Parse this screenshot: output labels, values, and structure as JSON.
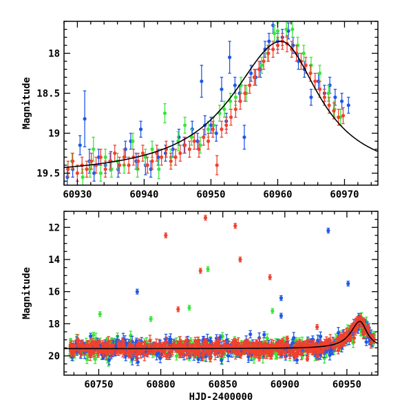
{
  "colors": {
    "blue": "#1f57e6",
    "green": "#39e639",
    "red": "#f0402e",
    "model": "#000000",
    "frame": "#000000"
  },
  "chart_data": [
    {
      "type": "scatter",
      "panel": "top",
      "xlabel": "",
      "ylabel": "Magnitude",
      "xlim": [
        60928,
        60975
      ],
      "ylim": [
        19.65,
        17.6
      ],
      "y_inverted": true,
      "xticks": [
        60930,
        60940,
        60950,
        60960,
        60970
      ],
      "xtick_labels": [
        "60930",
        "60940",
        "60950",
        "60960",
        "60970"
      ],
      "yticks": [
        18,
        18.5,
        19,
        19.5
      ],
      "ytick_labels": [
        "18",
        "18.5",
        "19",
        "19.5"
      ],
      "model_curve": {
        "name": "fit",
        "peak_x": 60960.5,
        "peak_mag": 17.85,
        "baseline_mag": 19.55,
        "rise_timescale": 9.0,
        "decay_timescale": 7.0
      },
      "series": [
        {
          "name": "blue",
          "color": "#1f57e6",
          "points": [
            [
              60928.5,
              19.55,
              0.1
            ],
            [
              60929.3,
              19.45,
              0.1
            ],
            [
              60930.4,
              19.15,
              0.12
            ],
            [
              60931.1,
              18.82,
              0.35
            ],
            [
              60931.8,
              19.35,
              0.15
            ],
            [
              60932.5,
              19.5,
              0.1
            ],
            [
              60933.2,
              19.3,
              0.1
            ],
            [
              60934.2,
              19.4,
              0.1
            ],
            [
              60935.0,
              19.35,
              0.12
            ],
            [
              60936.1,
              19.45,
              0.1
            ],
            [
              60937.2,
              19.2,
              0.1
            ],
            [
              60938.0,
              19.1,
              0.1
            ],
            [
              60938.8,
              19.35,
              0.1
            ],
            [
              60939.5,
              18.95,
              0.1
            ],
            [
              60940.2,
              19.4,
              0.12
            ],
            [
              60941.0,
              19.45,
              0.1
            ],
            [
              60942.1,
              19.3,
              0.1
            ],
            [
              60943.2,
              19.25,
              0.1
            ],
            [
              60944.3,
              19.2,
              0.1
            ],
            [
              60945.2,
              19.05,
              0.1
            ],
            [
              60946.0,
              19.15,
              0.1
            ],
            [
              60947.2,
              18.95,
              0.1
            ],
            [
              60948.0,
              19.1,
              0.1
            ],
            [
              60948.6,
              18.35,
              0.2
            ],
            [
              60949.1,
              18.9,
              0.12
            ],
            [
              60950.0,
              18.9,
              0.1
            ],
            [
              60950.8,
              19.0,
              0.1
            ],
            [
              60951.6,
              18.45,
              0.15
            ],
            [
              60952.3,
              18.85,
              0.1
            ],
            [
              60952.8,
              18.05,
              0.2
            ],
            [
              60953.6,
              18.4,
              0.1
            ],
            [
              60954.3,
              18.5,
              0.1
            ],
            [
              60955.0,
              19.05,
              0.15
            ],
            [
              60956.0,
              18.25,
              0.1
            ],
            [
              60956.7,
              18.3,
              0.1
            ],
            [
              60957.4,
              18.2,
              0.1
            ],
            [
              60958.1,
              17.95,
              0.1
            ],
            [
              60958.7,
              17.85,
              0.1
            ],
            [
              60959.3,
              17.65,
              0.1
            ],
            [
              60960.0,
              17.85,
              0.1
            ],
            [
              60960.7,
              17.8,
              0.1
            ],
            [
              60961.6,
              17.72,
              0.1
            ],
            [
              60962.3,
              17.9,
              0.1
            ],
            [
              60963.1,
              18.1,
              0.1
            ],
            [
              60964.0,
              18.2,
              0.1
            ],
            [
              60965.0,
              18.55,
              0.1
            ],
            [
              60966.1,
              18.35,
              0.1
            ],
            [
              60967.0,
              18.5,
              0.1
            ],
            [
              60967.8,
              18.4,
              0.1
            ],
            [
              60968.6,
              18.55,
              0.1
            ],
            [
              60969.6,
              18.6,
              0.1
            ],
            [
              60970.6,
              18.65,
              0.1
            ]
          ]
        },
        {
          "name": "green",
          "color": "#39e639",
          "points": [
            [
              60929.2,
              19.35,
              0.1
            ],
            [
              60930.8,
              19.55,
              0.1
            ],
            [
              60931.9,
              19.45,
              0.1
            ],
            [
              60932.4,
              19.2,
              0.15
            ],
            [
              60933.5,
              19.5,
              0.1
            ],
            [
              60934.2,
              19.3,
              0.1
            ],
            [
              60935.1,
              19.45,
              0.1
            ],
            [
              60936.0,
              19.35,
              0.1
            ],
            [
              60937.0,
              19.4,
              0.1
            ],
            [
              60938.3,
              19.1,
              0.1
            ],
            [
              60939.0,
              19.45,
              0.1
            ],
            [
              60940.2,
              19.3,
              0.1
            ],
            [
              60941.2,
              19.2,
              0.1
            ],
            [
              60942.2,
              19.45,
              0.12
            ],
            [
              60943.1,
              18.75,
              0.12
            ],
            [
              60944.0,
              19.3,
              0.1
            ],
            [
              60945.1,
              19.1,
              0.12
            ],
            [
              60946.1,
              18.9,
              0.1
            ],
            [
              60947.1,
              19.05,
              0.1
            ],
            [
              60948.4,
              19.15,
              0.1
            ],
            [
              60949.6,
              18.95,
              0.1
            ],
            [
              60950.4,
              18.9,
              0.1
            ],
            [
              60951.3,
              18.75,
              0.1
            ],
            [
              60952.0,
              18.7,
              0.1
            ],
            [
              60952.9,
              18.6,
              0.1
            ],
            [
              60953.7,
              18.55,
              0.1
            ],
            [
              60954.5,
              18.4,
              0.1
            ],
            [
              60955.3,
              18.5,
              0.1
            ],
            [
              60956.5,
              18.3,
              0.1
            ],
            [
              60957.6,
              18.15,
              0.1
            ],
            [
              60958.5,
              18.0,
              0.1
            ],
            [
              60959.5,
              17.75,
              0.1
            ],
            [
              60960.0,
              17.72,
              0.1
            ],
            [
              60961.3,
              17.7,
              0.1
            ],
            [
              60962.2,
              17.7,
              0.1
            ],
            [
              60963.0,
              17.9,
              0.1
            ],
            [
              60963.9,
              18.0,
              0.1
            ],
            [
              60965.0,
              18.15,
              0.1
            ],
            [
              60966.3,
              18.25,
              0.1
            ],
            [
              60967.6,
              18.5,
              0.1
            ],
            [
              60968.5,
              18.7,
              0.1
            ],
            [
              60969.4,
              18.8,
              0.1
            ]
          ]
        },
        {
          "name": "red",
          "color": "#f0402e",
          "points": [
            [
              60928.6,
              19.45,
              0.1
            ],
            [
              60929.3,
              19.35,
              0.1
            ],
            [
              60930.0,
              19.5,
              0.1
            ],
            [
              60930.7,
              19.4,
              0.1
            ],
            [
              60931.4,
              19.45,
              0.1
            ],
            [
              60932.1,
              19.35,
              0.1
            ],
            [
              60932.8,
              19.4,
              0.1
            ],
            [
              60933.5,
              19.3,
              0.1
            ],
            [
              60934.2,
              19.45,
              0.1
            ],
            [
              60934.9,
              19.35,
              0.1
            ],
            [
              60935.6,
              19.25,
              0.1
            ],
            [
              60936.3,
              19.4,
              0.1
            ],
            [
              60937.0,
              19.3,
              0.1
            ],
            [
              60937.7,
              19.4,
              0.1
            ],
            [
              60938.4,
              19.3,
              0.1
            ],
            [
              60939.1,
              19.35,
              0.1
            ],
            [
              60939.8,
              19.25,
              0.1
            ],
            [
              60940.5,
              19.4,
              0.1
            ],
            [
              60941.2,
              19.35,
              0.1
            ],
            [
              60941.9,
              19.25,
              0.1
            ],
            [
              60942.6,
              19.3,
              0.1
            ],
            [
              60943.3,
              19.2,
              0.1
            ],
            [
              60944.0,
              19.35,
              0.1
            ],
            [
              60944.7,
              19.3,
              0.1
            ],
            [
              60945.4,
              19.25,
              0.1
            ],
            [
              60946.1,
              19.15,
              0.1
            ],
            [
              60946.8,
              19.2,
              0.1
            ],
            [
              60947.5,
              19.1,
              0.1
            ],
            [
              60948.2,
              19.2,
              0.1
            ],
            [
              60948.9,
              19.05,
              0.1
            ],
            [
              60949.6,
              19.1,
              0.1
            ],
            [
              60950.3,
              18.95,
              0.1
            ],
            [
              60950.9,
              19.4,
              0.12
            ],
            [
              60951.6,
              18.95,
              0.1
            ],
            [
              60952.3,
              18.9,
              0.1
            ],
            [
              60953.0,
              18.8,
              0.1
            ],
            [
              60953.7,
              18.7,
              0.1
            ],
            [
              60954.4,
              18.6,
              0.1
            ],
            [
              60955.1,
              18.5,
              0.1
            ],
            [
              60955.8,
              18.4,
              0.1
            ],
            [
              60956.5,
              18.3,
              0.1
            ],
            [
              60957.2,
              18.2,
              0.1
            ],
            [
              60957.9,
              18.1,
              0.1
            ],
            [
              60958.6,
              18.0,
              0.1
            ],
            [
              60959.3,
              17.95,
              0.1
            ],
            [
              60960.0,
              17.9,
              0.1
            ],
            [
              60960.7,
              17.85,
              0.1
            ],
            [
              60961.4,
              17.88,
              0.1
            ],
            [
              60962.1,
              17.95,
              0.1
            ],
            [
              60962.8,
              18.0,
              0.1
            ],
            [
              60963.5,
              18.1,
              0.1
            ],
            [
              60964.2,
              18.15,
              0.1
            ],
            [
              60964.9,
              18.25,
              0.1
            ],
            [
              60965.6,
              18.35,
              0.1
            ],
            [
              60966.3,
              18.45,
              0.1
            ],
            [
              60967.0,
              18.55,
              0.1
            ],
            [
              60967.7,
              18.65,
              0.1
            ],
            [
              60968.4,
              18.72,
              0.1
            ],
            [
              60969.1,
              18.8,
              0.1
            ],
            [
              60969.8,
              18.78,
              0.1
            ]
          ]
        }
      ]
    },
    {
      "type": "scatter",
      "panel": "bottom",
      "xlabel": "HJD-2400000",
      "ylabel": "Magnitude",
      "xlim": [
        60722,
        60975
      ],
      "ylim": [
        21.2,
        11
      ],
      "y_inverted": true,
      "xticks": [
        60750,
        60800,
        60850,
        60900,
        60950
      ],
      "xtick_labels": [
        "60750",
        "60800",
        "60850",
        "60900",
        "60950"
      ],
      "yticks": [
        12,
        14,
        16,
        18,
        20
      ],
      "ytick_labels": [
        "12",
        "14",
        "16",
        "18",
        "20"
      ],
      "model_curve": {
        "name": "fit",
        "peak_x": 60960.5,
        "peak_mag": 17.85,
        "baseline_mag": 19.55,
        "rise_timescale": 9.0,
        "decay_timescale": 7.0
      },
      "baseline_scatter": {
        "x_start": 60727,
        "x_end": 60958,
        "median_mag": 19.5,
        "rms": 0.35
      },
      "outliers": [
        {
          "series": "red",
          "x": 60804,
          "y": 12.5
        },
        {
          "series": "red",
          "x": 60836,
          "y": 11.4
        },
        {
          "series": "red",
          "x": 60860,
          "y": 11.9
        },
        {
          "series": "red",
          "x": 60832,
          "y": 14.7
        },
        {
          "series": "red",
          "x": 60864,
          "y": 14.0
        },
        {
          "series": "red",
          "x": 60888,
          "y": 15.1
        },
        {
          "series": "red",
          "x": 60814,
          "y": 17.1
        },
        {
          "series": "red",
          "x": 60926,
          "y": 18.2
        },
        {
          "series": "green",
          "x": 60751,
          "y": 17.4
        },
        {
          "series": "green",
          "x": 60838,
          "y": 14.6
        },
        {
          "series": "green",
          "x": 60823,
          "y": 17.0
        },
        {
          "series": "green",
          "x": 60792,
          "y": 17.7
        },
        {
          "series": "green",
          "x": 60890,
          "y": 17.2
        },
        {
          "series": "blue",
          "x": 60781,
          "y": 16.0
        },
        {
          "series": "blue",
          "x": 60897,
          "y": 16.4
        },
        {
          "series": "blue",
          "x": 60935,
          "y": 12.2
        },
        {
          "series": "blue",
          "x": 60951,
          "y": 15.5
        },
        {
          "series": "blue",
          "x": 60897,
          "y": 17.5
        }
      ]
    }
  ]
}
